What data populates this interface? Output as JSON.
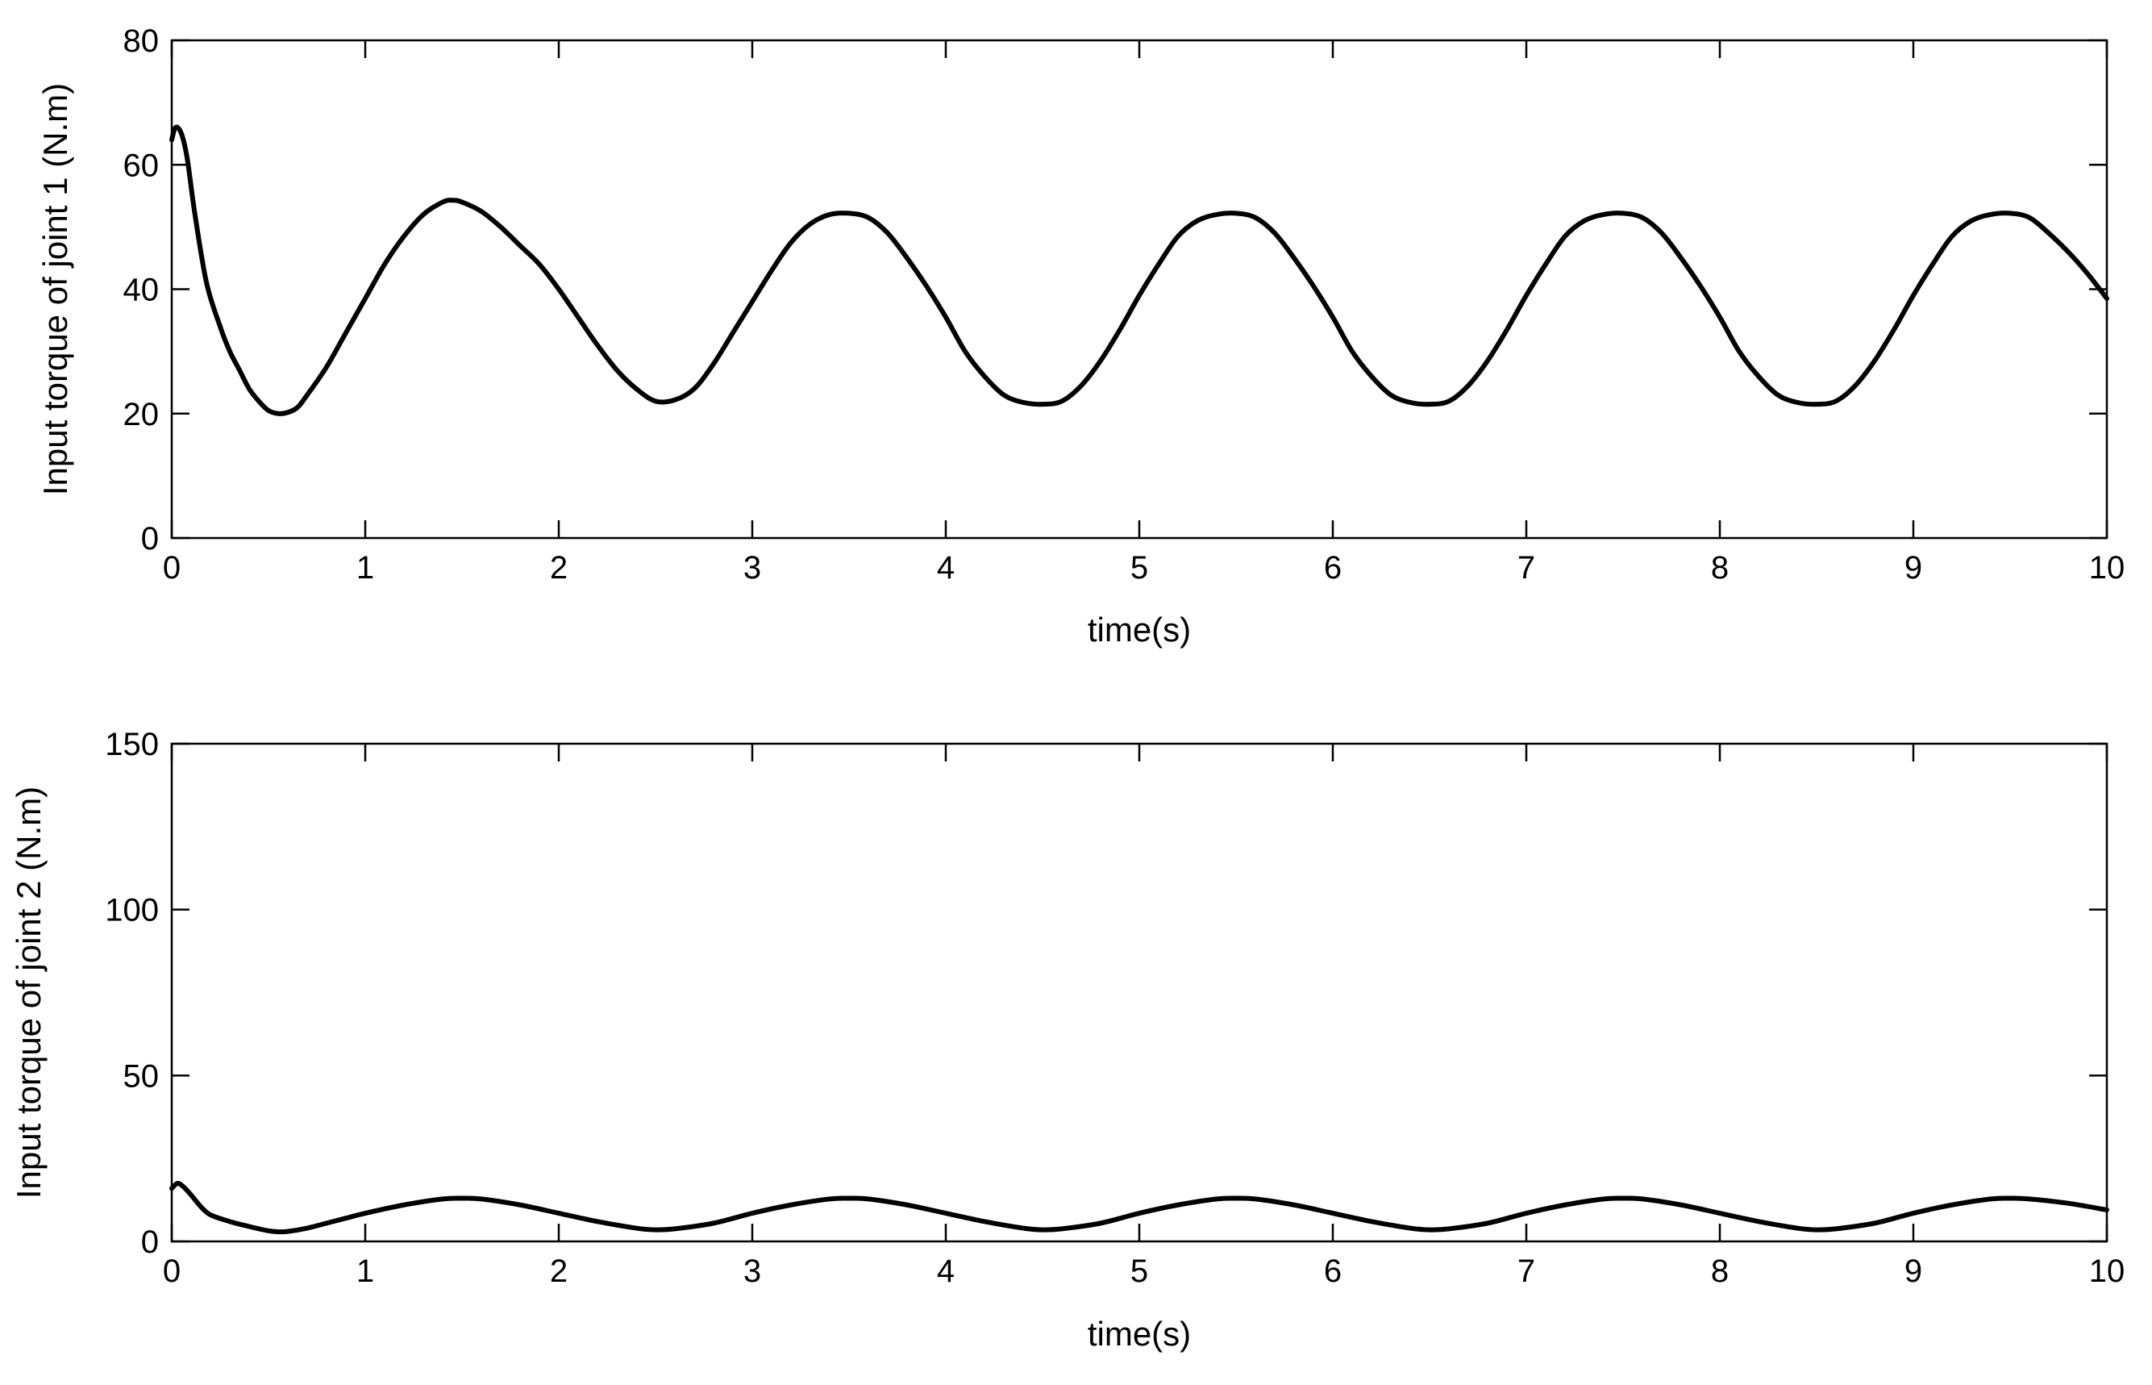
{
  "chart_data": [
    {
      "type": "line",
      "title": "",
      "xlabel": "time(s)",
      "ylabel": "Input torque of joint 1  (N.m)",
      "xlim": [
        0,
        10
      ],
      "ylim": [
        0,
        80
      ],
      "xticks": [
        0,
        1,
        2,
        3,
        4,
        5,
        6,
        7,
        8,
        9,
        10
      ],
      "yticks": [
        0,
        20,
        40,
        60,
        80
      ],
      "grid": false,
      "series": [
        {
          "x": [
            0,
            0.02,
            0.05,
            0.08,
            0.12,
            0.18,
            0.25,
            0.3,
            0.35,
            0.4,
            0.45,
            0.5,
            0.55,
            0.6,
            0.65,
            0.7,
            0.8,
            0.9,
            1.0,
            1.1,
            1.2,
            1.3,
            1.4,
            1.45,
            1.5,
            1.6,
            1.7,
            1.8,
            1.9,
            2.0,
            2.1,
            2.2,
            2.3,
            2.4,
            2.5,
            2.6,
            2.7,
            2.8,
            2.9,
            3.0,
            3.1,
            3.2,
            3.3,
            3.4,
            3.5,
            3.6,
            3.7,
            3.8,
            3.9,
            4.0,
            4.1,
            4.2,
            4.3,
            4.4,
            4.5,
            4.6,
            4.7,
            4.8,
            4.9,
            5.0,
            5.1,
            5.2,
            5.3,
            5.4,
            5.5,
            5.6,
            5.7,
            5.8,
            5.9,
            6.0,
            6.1,
            6.2,
            6.3,
            6.4,
            6.5,
            6.6,
            6.7,
            6.8,
            6.9,
            7.0,
            7.1,
            7.2,
            7.3,
            7.4,
            7.5,
            7.6,
            7.7,
            7.8,
            7.9,
            8.0,
            8.1,
            8.2,
            8.3,
            8.4,
            8.5,
            8.6,
            8.7,
            8.8,
            8.9,
            9.0,
            9.1,
            9.2,
            9.3,
            9.4,
            9.5,
            9.6,
            9.7,
            9.8,
            9.9,
            10.0
          ],
          "y": [
            64,
            66,
            65,
            61,
            52,
            41,
            34,
            30,
            27,
            24,
            22,
            20.5,
            20,
            20.2,
            21,
            23,
            27.5,
            33,
            38.5,
            44,
            48.5,
            52,
            54,
            54.3,
            54,
            52.5,
            50,
            47,
            44,
            40,
            35.5,
            31,
            27,
            24,
            22,
            22.2,
            24,
            28,
            33,
            38,
            43,
            47.5,
            50.5,
            52,
            52.2,
            51.5,
            49,
            45,
            40.5,
            35.5,
            30,
            26,
            23,
            21.8,
            21.5,
            22,
            24.5,
            28.5,
            33.5,
            39,
            44,
            48.5,
            51,
            52,
            52.2,
            51.5,
            49,
            45,
            40.5,
            35.5,
            30,
            26,
            23,
            21.8,
            21.5,
            22,
            24.5,
            28.5,
            33.5,
            39,
            44,
            48.5,
            51,
            52,
            52.2,
            51.5,
            49,
            45,
            40.5,
            35.5,
            30,
            26,
            23,
            21.8,
            21.5,
            22,
            24.5,
            28.5,
            33.5,
            39,
            44,
            48.5,
            51,
            52,
            52.2,
            51.5,
            49,
            46,
            42.5,
            38.5
          ]
        }
      ]
    },
    {
      "type": "line",
      "title": "",
      "xlabel": "time(s)",
      "ylabel": "Input torque of joint 2 (N.m)",
      "xlim": [
        0,
        10
      ],
      "ylim": [
        0,
        150
      ],
      "xticks": [
        0,
        1,
        2,
        3,
        4,
        5,
        6,
        7,
        8,
        9,
        10
      ],
      "yticks": [
        0,
        50,
        100,
        150
      ],
      "grid": false,
      "series": [
        {
          "x": [
            0,
            0.03,
            0.06,
            0.1,
            0.15,
            0.2,
            0.3,
            0.4,
            0.5,
            0.55,
            0.6,
            0.7,
            0.8,
            0.9,
            1.0,
            1.2,
            1.4,
            1.5,
            1.6,
            1.8,
            2.0,
            2.2,
            2.4,
            2.5,
            2.6,
            2.8,
            3.0,
            3.2,
            3.4,
            3.5,
            3.6,
            3.8,
            4.0,
            4.2,
            4.4,
            4.5,
            4.6,
            4.8,
            5.0,
            5.2,
            5.4,
            5.5,
            5.6,
            5.8,
            6.0,
            6.2,
            6.4,
            6.5,
            6.6,
            6.8,
            7.0,
            7.2,
            7.4,
            7.5,
            7.6,
            7.8,
            8.0,
            8.2,
            8.4,
            8.5,
            8.6,
            8.8,
            9.0,
            9.2,
            9.4,
            9.5,
            9.6,
            9.8,
            10.0
          ],
          "y": [
            16,
            17.5,
            16.5,
            14,
            10.5,
            8,
            6,
            4.5,
            3.2,
            2.9,
            3,
            4,
            5.5,
            7,
            8.5,
            11,
            12.8,
            13,
            12.8,
            11,
            8.5,
            6,
            4,
            3.5,
            3.8,
            5.5,
            8.5,
            11,
            12.8,
            13,
            12.8,
            11,
            8.5,
            6,
            4,
            3.5,
            3.8,
            5.5,
            8.5,
            11,
            12.8,
            13,
            12.8,
            11,
            8.5,
            6,
            4,
            3.5,
            3.8,
            5.5,
            8.5,
            11,
            12.8,
            13,
            12.8,
            11,
            8.5,
            6,
            4,
            3.5,
            3.8,
            5.5,
            8.5,
            11,
            12.8,
            13,
            12.8,
            11.5,
            9.5
          ]
        }
      ]
    }
  ]
}
